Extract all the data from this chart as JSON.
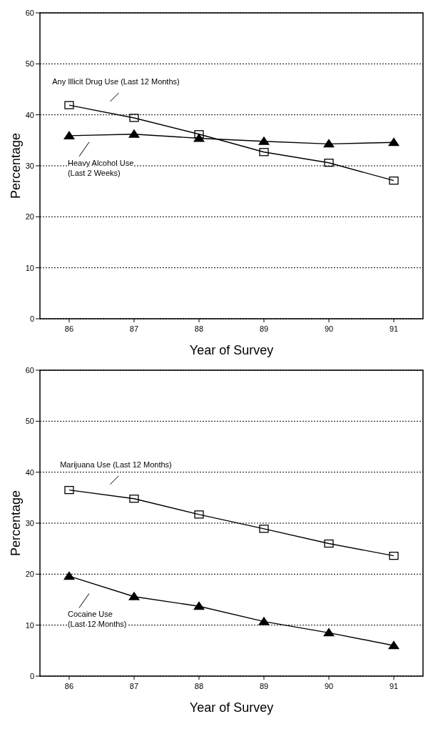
{
  "chart_data": [
    {
      "type": "line",
      "xlabel": "Year of Survey",
      "ylabel": "Percentage",
      "categories": [
        "86",
        "87",
        "88",
        "89",
        "90",
        "91"
      ],
      "ylim": [
        0,
        60
      ],
      "yticks": [
        0,
        10,
        20,
        30,
        40,
        50,
        60
      ],
      "grid": "y",
      "line_style": "solid",
      "series": [
        {
          "name": "Any Illicit Drug Use (Last 12 Months)",
          "color": "#000000",
          "marker": "square",
          "values": [
            41.9,
            39.4,
            36.2,
            32.7,
            30.6,
            27.1
          ]
        },
        {
          "name": "Heavy Alcohol Use (Last 2 Weeks)",
          "color": "#000000",
          "marker": "triangle",
          "values": [
            35.9,
            36.2,
            35.4,
            34.8,
            34.3,
            34.6
          ]
        }
      ]
    },
    {
      "type": "line",
      "xlabel": "Year of Survey",
      "ylabel": "Percentage",
      "categories": [
        "86",
        "87",
        "88",
        "89",
        "90",
        "91"
      ],
      "ylim": [
        0,
        60
      ],
      "yticks": [
        0,
        10,
        20,
        30,
        40,
        50,
        60
      ],
      "grid": "y",
      "line_style": "solid",
      "series": [
        {
          "name": "Marijuana Use (Last 12 Months)",
          "color": "#000000",
          "marker": "square",
          "values": [
            36.5,
            34.8,
            31.7,
            28.9,
            26.0,
            23.6
          ]
        },
        {
          "name": "Cocaine Use (Last 12 Months)",
          "color": "#000000",
          "marker": "triangle",
          "values": [
            19.6,
            15.6,
            13.7,
            10.7,
            8.5,
            6.0
          ]
        }
      ]
    }
  ]
}
